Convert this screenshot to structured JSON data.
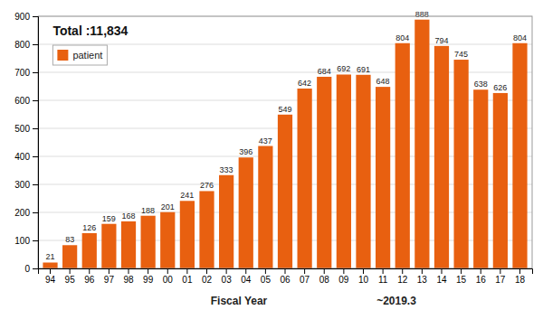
{
  "chart_data": {
    "type": "bar",
    "title": "Total :11,834",
    "categories": [
      "94",
      "95",
      "96",
      "97",
      "98",
      "99",
      "00",
      "01",
      "02",
      "03",
      "04",
      "05",
      "06",
      "07",
      "08",
      "09",
      "10",
      "11",
      "12",
      "13",
      "14",
      "15",
      "16",
      "17",
      "18"
    ],
    "series": [
      {
        "name": "patient",
        "color": "#E86010",
        "values": [
          21,
          83,
          126,
          159,
          168,
          188,
          201,
          241,
          276,
          333,
          396,
          437,
          549,
          642,
          684,
          692,
          691,
          648,
          804,
          888,
          794,
          745,
          638,
          626,
          804
        ]
      }
    ],
    "x_label": "Fiscal Year",
    "annotations": [
      "~2019.3"
    ],
    "ylim": [
      0,
      900
    ],
    "yticks": [
      0,
      100,
      200,
      300,
      400,
      500,
      600,
      700,
      800,
      900
    ],
    "grid": true,
    "legend": "upper left",
    "data_labels": true
  }
}
